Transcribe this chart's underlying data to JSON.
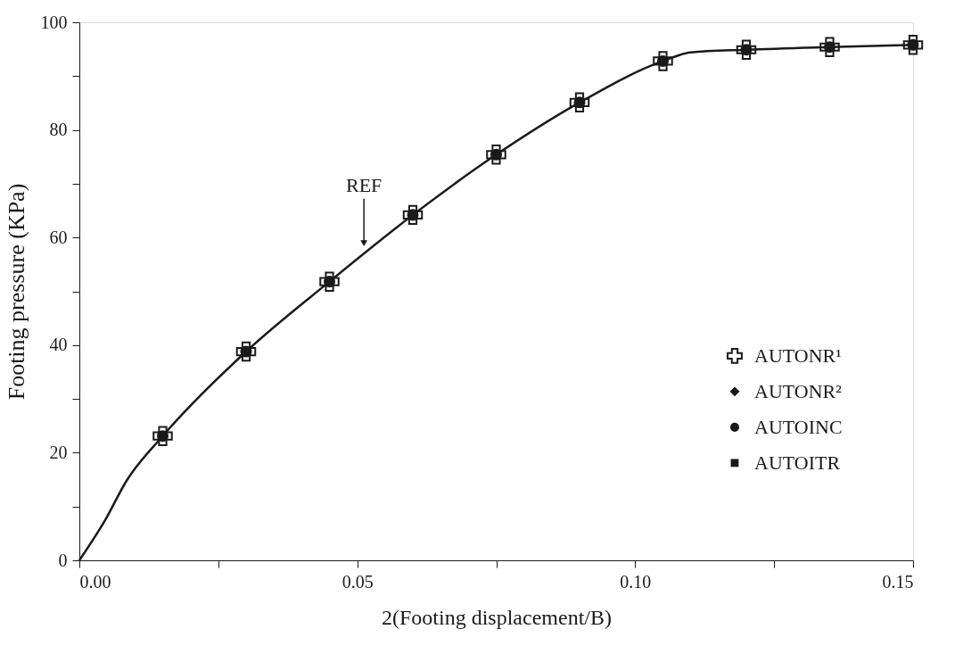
{
  "chart_data": {
    "type": "scatter",
    "xlabel": "2(Footing displacement/B)",
    "ylabel": "Footing pressure (KPa)",
    "x": [
      0.015,
      0.03,
      0.045,
      0.06,
      0.075,
      0.09,
      0.105,
      0.12,
      0.135,
      0.15
    ],
    "series": [
      {
        "type": "line",
        "marker": "none",
        "line_style": "solid",
        "color": "#1a1a1a",
        "x": [
          0,
          0.0046,
          0.0085,
          0.015,
          0.03,
          0.045,
          0.06,
          0.075,
          0.09,
          0.105,
          0.11,
          0.12,
          0.135,
          0.15
        ],
        "values": [
          0,
          7.4,
          14.8,
          23.1,
          38.8,
          51.8,
          64.2,
          75.4,
          85.1,
          92.8,
          94.4,
          94.9,
          95.4,
          95.8
        ]
      },
      {
        "name": "AUTONR¹",
        "marker": "cross",
        "color": "#1a1a1a",
        "values": [
          23.1,
          38.8,
          51.8,
          64.2,
          75.4,
          85.1,
          92.8,
          94.9,
          95.4,
          95.8
        ]
      },
      {
        "name": "AUTONR²",
        "marker": "diamond",
        "color": "#1a1a1a",
        "values": [
          null,
          null,
          null,
          null,
          null,
          null,
          null,
          null,
          null,
          null
        ]
      },
      {
        "name": "AUTOINC",
        "marker": "circle",
        "color": "#1a1a1a",
        "values": [
          23.1,
          38.8,
          51.8,
          64.2,
          75.4,
          85.1,
          92.8,
          94.9,
          95.4,
          95.8
        ]
      },
      {
        "name": "AUTOITR",
        "marker": "square",
        "color": "#1a1a1a",
        "values": [
          null,
          null,
          null,
          null,
          null,
          null,
          null,
          null,
          null,
          null
        ]
      }
    ],
    "annotations": [
      {
        "text": "REF",
        "x": 0.0512,
        "y": 58.1
      }
    ],
    "xlim": [
      0,
      0.15
    ],
    "ylim": [
      0,
      100
    ],
    "xticks": [
      {
        "value": 0,
        "label": "0.00"
      },
      {
        "value": 0.025,
        "label": null
      },
      {
        "value": 0.05,
        "label": "0.05"
      },
      {
        "value": 0.075,
        "label": null
      },
      {
        "value": 0.1,
        "label": "0.10"
      },
      {
        "value": 0.125,
        "label": null
      },
      {
        "value": 0.15,
        "label": "0.15"
      }
    ],
    "yticks": [
      0,
      {
        "value": 10,
        "label": null
      },
      20,
      {
        "value": 30,
        "label": null
      },
      40,
      {
        "value": 50,
        "label": null
      },
      60,
      {
        "value": 70,
        "label": null
      },
      80,
      {
        "value": 90,
        "label": null
      },
      100
    ],
    "grid": false,
    "legend": "right"
  }
}
